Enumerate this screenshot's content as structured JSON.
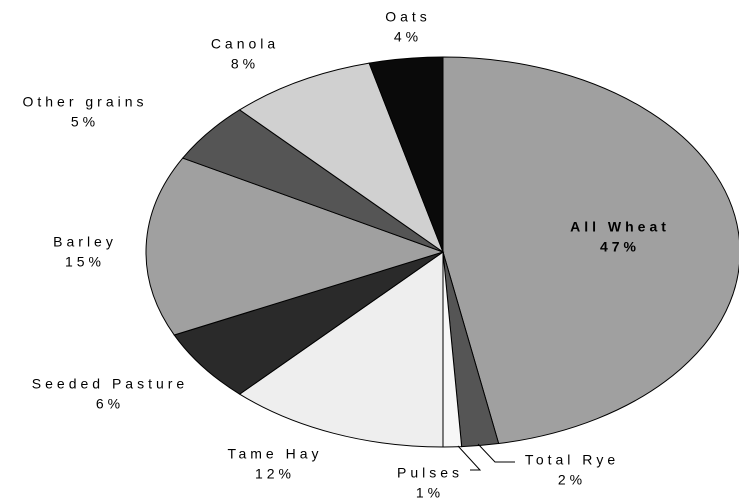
{
  "chart_data": {
    "type": "pie",
    "categories": [
      "All Wheat",
      "Total Rye",
      "Pulses",
      "Tame Hay",
      "Seeded Pasture",
      "Barley",
      "Other grains",
      "Canola",
      "Oats"
    ],
    "values": [
      47,
      2,
      1,
      12,
      6,
      15,
      5,
      8,
      4
    ],
    "value_labels": [
      "47%",
      "2%",
      "1%",
      "12%",
      "6%",
      "15%",
      "5%",
      "8%",
      "4%"
    ],
    "colors": [
      "#a0a0a0",
      "#555555",
      "#f7f7f7",
      "#eeeeee",
      "#2a2a2a",
      "#a0a0a0",
      "#555555",
      "#d0d0d0",
      "#0a0a0a"
    ]
  }
}
